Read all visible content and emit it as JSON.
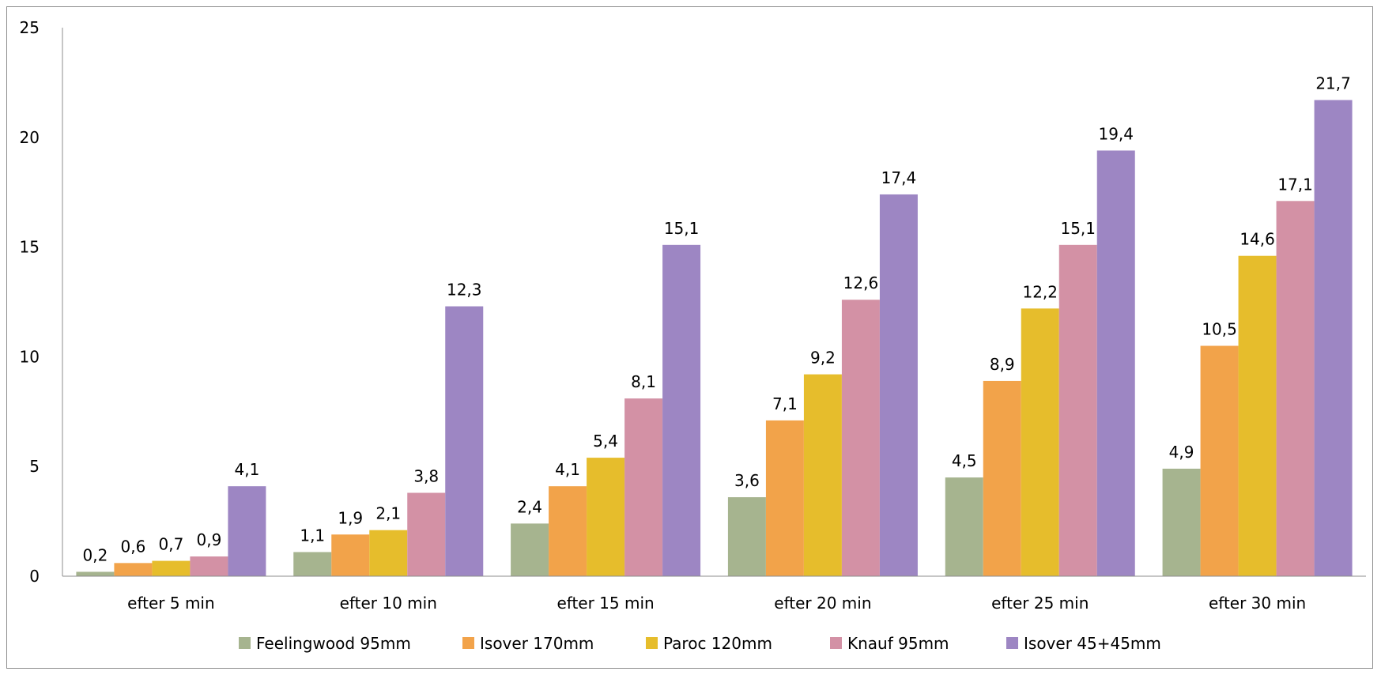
{
  "chart_data": {
    "type": "bar",
    "title": "",
    "xlabel": "",
    "ylabel": "",
    "ylim": [
      0,
      25
    ],
    "yticks": [
      0,
      5,
      10,
      15,
      20,
      25
    ],
    "grid": false,
    "legend_position": "bottom",
    "categories": [
      "efter 5 min",
      "efter 10 min",
      "efter 15 min",
      "efter 20 min",
      "efter 25 min",
      "efter 30 min"
    ],
    "series": [
      {
        "name": "Feelingwood 95mm",
        "color": "#a6b48f",
        "values": [
          0.2,
          1.1,
          2.4,
          3.6,
          4.5,
          4.9
        ],
        "labels": [
          "0,2",
          "1,1",
          "2,4",
          "3,6",
          "4,5",
          "4,9"
        ]
      },
      {
        "name": "Isover 170mm",
        "color": "#f2a34a",
        "values": [
          0.6,
          1.9,
          4.1,
          7.1,
          8.9,
          10.5
        ],
        "labels": [
          "0,6",
          "1,9",
          "4,1",
          "7,1",
          "8,9",
          "10,5"
        ]
      },
      {
        "name": "Paroc 120mm",
        "color": "#e6bd2c",
        "values": [
          0.7,
          2.1,
          5.4,
          9.2,
          12.2,
          14.6
        ],
        "labels": [
          "0,7",
          "2,1",
          "5,4",
          "9,2",
          "12,2",
          "14,6"
        ]
      },
      {
        "name": "Knauf 95mm",
        "color": "#d391a5",
        "values": [
          0.9,
          3.8,
          8.1,
          12.6,
          15.1,
          17.1
        ],
        "labels": [
          "0,9",
          "3,8",
          "8,1",
          "12,6",
          "15,1",
          "17,1"
        ]
      },
      {
        "name": "Isover 45+45mm",
        "color": "#9d86c3",
        "values": [
          4.1,
          12.3,
          15.1,
          17.4,
          19.4,
          21.7
        ],
        "labels": [
          "4,1",
          "12,3",
          "15,1",
          "17,4",
          "19,4",
          "21,7"
        ]
      }
    ]
  }
}
